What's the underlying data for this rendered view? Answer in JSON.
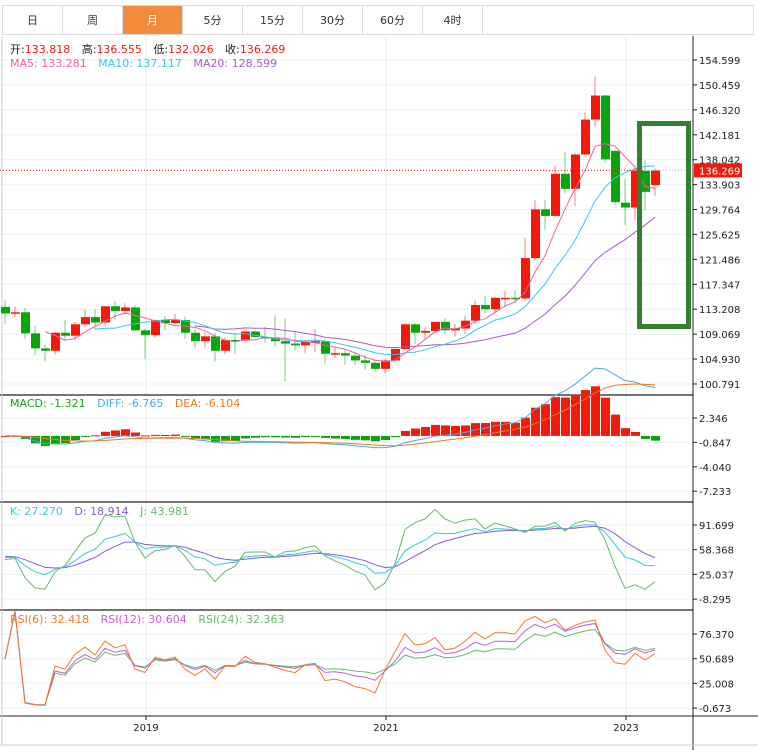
{
  "tabs": [
    {
      "label": "日"
    },
    {
      "label": "周"
    },
    {
      "label": "月",
      "active": true
    },
    {
      "label": "5分"
    },
    {
      "label": "15分"
    },
    {
      "label": "30分"
    },
    {
      "label": "60分"
    },
    {
      "label": "4时"
    }
  ],
  "header": {
    "ohlc": {
      "open_label": "开:",
      "open": "133.818",
      "high_label": "高:",
      "high": "136.555",
      "low_label": "低:",
      "low": "132.026",
      "close_label": "收:",
      "close": "136.269"
    },
    "ma": {
      "ma5": "MA5: 133.281",
      "ma10": "MA10: 137.117",
      "ma20": "MA20: 128.599"
    }
  },
  "macd_legend": {
    "macd": "MACD: -1.321",
    "diff": "DIFF: -6.765",
    "dea": "DEA: -6.104"
  },
  "kdj_legend": {
    "k": "K: 27.270",
    "d": "D: 18.914",
    "j": "J: 43.981"
  },
  "rsi_legend": {
    "rsi6": "RSI(6): 32.418",
    "rsi12": "RSI(12): 30.604",
    "rsi24": "RSI(24): 32.363"
  },
  "colors": {
    "up": "#f21a0a",
    "down": "#0aa50a",
    "ma5": "#f0609a",
    "ma10": "#35c8e0",
    "ma20": "#b058c8",
    "diff": "#4aa8f0",
    "dea": "#f07820",
    "k": "#35c8e0",
    "d": "#8a5ad8",
    "j": "#6ab86a",
    "rsi6": "#f07830",
    "rsi12": "#c060d0",
    "rsi24": "#6ab86a",
    "tab_active": "#f28c3c",
    "annotation": "#338033",
    "last_price": "#f21a0a"
  },
  "chart_data": {
    "type": "candlestick",
    "interval": "monthly",
    "current_price": "136.269",
    "price_ticks": [
      "154.599",
      "150.459",
      "146.320",
      "142.181",
      "138.042",
      "133.903",
      "129.764",
      "125.625",
      "121.486",
      "117.347",
      "113.208",
      "109.069",
      "104.930",
      "100.791"
    ],
    "macd_ticks": [
      "2.346",
      "-0.847",
      "-4.040",
      "-7.233"
    ],
    "kdj_ticks": [
      "91.699",
      "58.368",
      "25.037",
      "-8.295"
    ],
    "rsi_ticks": [
      "76.370",
      "50.689",
      "25.008",
      "-0.673"
    ],
    "x_ticks": [
      {
        "label": "2019",
        "month": "2019-01"
      },
      {
        "label": "2021",
        "month": "2021-01"
      },
      {
        "label": "2023",
        "month": "2023-01"
      }
    ],
    "ohlc_columns": [
      "month",
      "open",
      "high",
      "low",
      "close"
    ],
    "candles": [
      [
        "2017-11",
        113.6,
        114.7,
        110.8,
        112.5
      ],
      [
        "2017-12",
        112.5,
        113.7,
        111.9,
        112.7
      ],
      [
        "2018-01",
        112.7,
        113.4,
        108.3,
        109.2
      ],
      [
        "2018-02",
        109.2,
        110.5,
        105.6,
        106.7
      ],
      [
        "2018-03",
        106.7,
        107.3,
        104.6,
        106.3
      ],
      [
        "2018-04",
        106.3,
        109.5,
        105.7,
        109.3
      ],
      [
        "2018-05",
        109.3,
        111.4,
        108.1,
        108.8
      ],
      [
        "2018-06",
        108.8,
        111.1,
        108.1,
        110.7
      ],
      [
        "2018-07",
        110.7,
        113.2,
        110.3,
        111.9
      ],
      [
        "2018-08",
        111.9,
        113.2,
        109.8,
        111.0
      ],
      [
        "2018-09",
        111.0,
        113.7,
        110.4,
        113.7
      ],
      [
        "2018-10",
        113.7,
        114.6,
        111.4,
        112.9
      ],
      [
        "2018-11",
        112.9,
        114.2,
        112.3,
        113.5
      ],
      [
        "2018-12",
        113.5,
        113.8,
        109.6,
        109.7
      ],
      [
        "2019-01",
        109.7,
        110.0,
        104.9,
        108.9
      ],
      [
        "2019-02",
        108.9,
        111.5,
        108.5,
        111.4
      ],
      [
        "2019-03",
        111.4,
        112.1,
        109.7,
        110.9
      ],
      [
        "2019-04",
        110.9,
        112.4,
        110.8,
        111.4
      ],
      [
        "2019-05",
        111.4,
        112.0,
        108.3,
        109.3
      ],
      [
        "2019-06",
        109.3,
        109.9,
        106.8,
        107.9
      ],
      [
        "2019-07",
        107.9,
        109.3,
        106.8,
        108.7
      ],
      [
        "2019-08",
        108.7,
        109.3,
        104.5,
        106.3
      ],
      [
        "2019-09",
        106.3,
        108.5,
        105.7,
        108.1
      ],
      [
        "2019-10",
        108.1,
        109.3,
        105.9,
        108.0
      ],
      [
        "2019-11",
        108.0,
        109.7,
        107.9,
        109.5
      ],
      [
        "2019-12",
        109.5,
        109.7,
        108.4,
        108.6
      ],
      [
        "2020-01",
        108.6,
        110.3,
        107.7,
        108.4
      ],
      [
        "2020-02",
        108.4,
        112.2,
        107.0,
        107.9
      ],
      [
        "2020-03",
        107.9,
        111.7,
        101.2,
        107.5
      ],
      [
        "2020-04",
        107.5,
        109.4,
        106.4,
        107.2
      ],
      [
        "2020-05",
        107.2,
        108.1,
        105.9,
        107.8
      ],
      [
        "2020-06",
        107.8,
        109.9,
        106.1,
        107.9
      ],
      [
        "2020-07",
        107.9,
        108.2,
        104.2,
        105.8
      ],
      [
        "2020-08",
        105.8,
        107.0,
        105.1,
        105.9
      ],
      [
        "2020-09",
        105.9,
        106.6,
        104.0,
        105.5
      ],
      [
        "2020-10",
        105.5,
        106.1,
        104.0,
        104.7
      ],
      [
        "2020-11",
        104.7,
        105.7,
        103.2,
        104.3
      ],
      [
        "2020-12",
        104.3,
        104.7,
        102.9,
        103.3
      ],
      [
        "2021-01",
        103.3,
        104.9,
        102.6,
        104.7
      ],
      [
        "2021-02",
        104.7,
        106.7,
        104.4,
        106.6
      ],
      [
        "2021-03",
        106.6,
        110.9,
        106.4,
        110.7
      ],
      [
        "2021-04",
        110.7,
        110.9,
        107.5,
        109.3
      ],
      [
        "2021-05",
        109.3,
        110.2,
        108.3,
        109.6
      ],
      [
        "2021-06",
        109.6,
        111.1,
        109.2,
        111.1
      ],
      [
        "2021-07",
        111.1,
        111.7,
        109.1,
        109.7
      ],
      [
        "2021-08",
        109.7,
        110.8,
        108.7,
        110.0
      ],
      [
        "2021-09",
        110.0,
        112.1,
        109.1,
        111.3
      ],
      [
        "2021-10",
        111.3,
        114.7,
        110.8,
        113.9
      ],
      [
        "2021-11",
        113.9,
        115.5,
        112.5,
        113.2
      ],
      [
        "2021-12",
        113.2,
        115.2,
        112.5,
        115.1
      ],
      [
        "2022-01",
        115.1,
        116.3,
        113.5,
        115.1
      ],
      [
        "2022-02",
        115.1,
        116.3,
        114.2,
        115.0
      ],
      [
        "2022-03",
        115.0,
        125.1,
        114.7,
        121.7
      ],
      [
        "2022-04",
        121.7,
        131.3,
        121.3,
        129.8
      ],
      [
        "2022-05",
        129.8,
        131.3,
        126.4,
        128.7
      ],
      [
        "2022-06",
        128.7,
        137.0,
        128.6,
        135.7
      ],
      [
        "2022-07",
        135.7,
        139.4,
        132.5,
        133.2
      ],
      [
        "2022-08",
        133.2,
        139.1,
        130.4,
        138.9
      ],
      [
        "2022-09",
        138.9,
        145.9,
        138.9,
        144.7
      ],
      [
        "2022-10",
        144.7,
        151.9,
        143.5,
        148.7
      ],
      [
        "2022-11",
        148.7,
        148.8,
        137.5,
        138.1
      ],
      [
        "2022-12",
        139.5,
        139.6,
        130.6,
        131.0
      ],
      [
        "2023-01",
        130.9,
        134.8,
        127.2,
        130.1
      ],
      [
        "2023-02",
        130.1,
        137.1,
        128.1,
        136.2
      ],
      [
        "2023-03",
        136.2,
        137.9,
        129.6,
        132.7
      ],
      [
        "2023-04",
        133.818,
        136.555,
        132.026,
        136.269
      ]
    ]
  }
}
